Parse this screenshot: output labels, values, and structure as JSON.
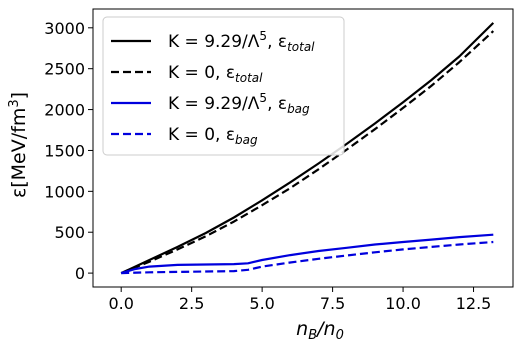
{
  "chart_data": {
    "type": "line",
    "xlabel_main": "n",
    "xlabel_sub": "B",
    "xlabel_tail": "/n",
    "xlabel_sub2": "0",
    "ylabel_main": "ε[MeV/fm",
    "ylabel_sup": "3",
    "ylabel_tail": "]",
    "xlim": [
      -1.0,
      13.9
    ],
    "ylim": [
      -170,
      3230
    ],
    "xticks": [
      0.0,
      2.5,
      5.0,
      7.5,
      10.0,
      12.5
    ],
    "xtick_labels": [
      "0.0",
      "2.5",
      "5.0",
      "7.5",
      "10.0",
      "12.5"
    ],
    "yticks": [
      0,
      500,
      1000,
      1500,
      2000,
      2500,
      3000
    ],
    "ytick_labels": [
      "0",
      "500",
      "1000",
      "1500",
      "2000",
      "2500",
      "3000"
    ],
    "legend_position": "top-left",
    "series": [
      {
        "name_pre": "K = 9.29/Λ",
        "name_sup": "5",
        "name_mid": ", ε",
        "name_sub": "total",
        "color": "#000000",
        "dash": "solid",
        "x": [
          0,
          1,
          2,
          3,
          4,
          5,
          6,
          7,
          8,
          9,
          10,
          11,
          12,
          13.2
        ],
        "y": [
          0,
          160,
          320,
          490,
          680,
          890,
          1110,
          1340,
          1580,
          1830,
          2090,
          2360,
          2650,
          3060
        ]
      },
      {
        "name_pre": "K = 0, ε",
        "name_sup": "",
        "name_mid": "",
        "name_sub": "total",
        "color": "#000000",
        "dash": "dashed",
        "x": [
          0,
          1,
          2,
          3,
          4,
          5,
          6,
          7,
          8,
          9,
          10,
          11,
          12,
          13.2
        ],
        "y": [
          0,
          140,
          290,
          450,
          630,
          830,
          1040,
          1270,
          1510,
          1760,
          2020,
          2290,
          2580,
          2960
        ]
      },
      {
        "name_pre": "K = 9.29/Λ",
        "name_sup": "5",
        "name_mid": ", ε",
        "name_sub": "bag",
        "color": "#0000dd",
        "dash": "solid",
        "x": [
          0,
          0.5,
          1,
          2,
          3,
          4,
          4.5,
          5,
          6,
          7,
          8,
          9,
          10,
          11,
          12,
          13.2
        ],
        "y": [
          0,
          50,
          80,
          100,
          105,
          110,
          120,
          160,
          220,
          270,
          310,
          350,
          380,
          410,
          440,
          470
        ]
      },
      {
        "name_pre": "K = 0, ε",
        "name_sup": "",
        "name_mid": "",
        "name_sub": "bag",
        "color": "#0000dd",
        "dash": "dashed",
        "x": [
          0,
          1,
          2,
          3,
          4,
          4.5,
          5,
          6,
          7,
          8,
          9,
          10,
          11,
          12,
          13.2
        ],
        "y": [
          0,
          10,
          15,
          20,
          25,
          40,
          80,
          130,
          175,
          215,
          255,
          290,
          320,
          350,
          380
        ]
      }
    ]
  }
}
